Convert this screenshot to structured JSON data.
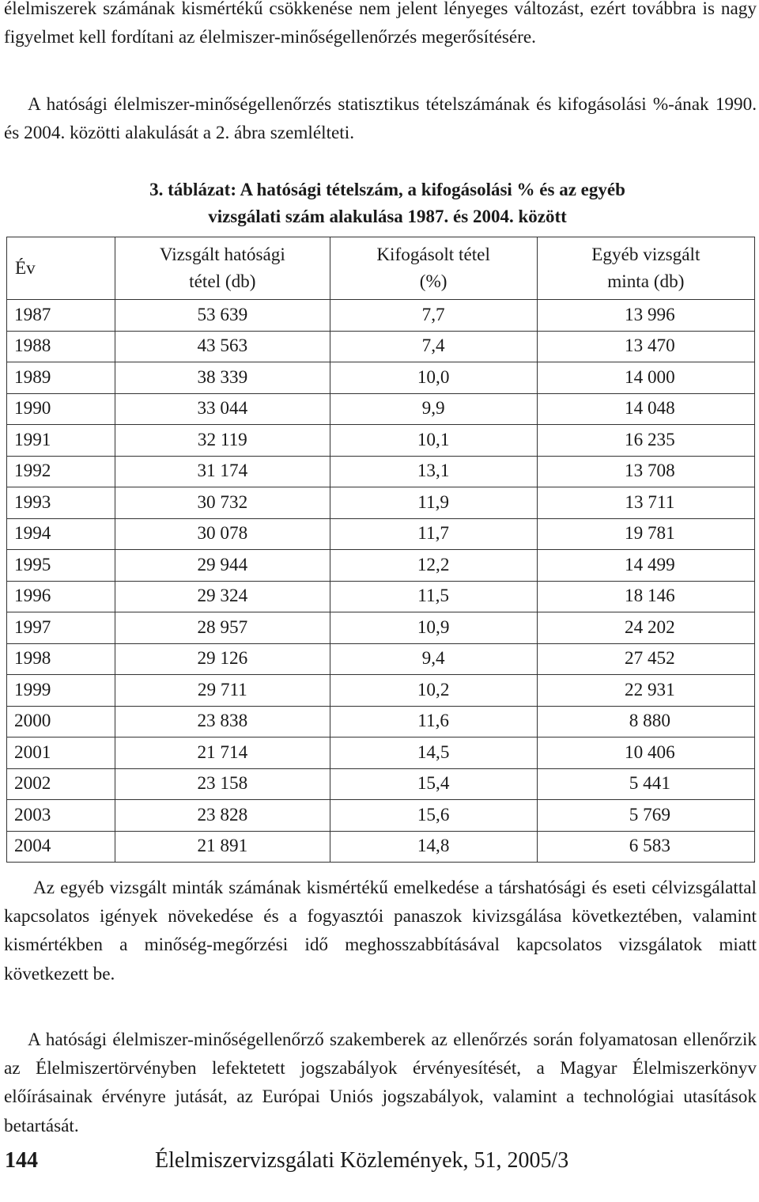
{
  "paragraphs_top": [
    "élelmiszerek számának kismértékű csökkenése nem jelent lényeges változást, ezért továbbra is nagy figyelmet kell fordítani az élelmiszer-minőségellenőrzés megerősítésére.",
    "A hatósági élelmiszer-minőségellenőrzés statisztikus tételszámának és kifogásolási %-ának 1990. és 2004. közötti alakulását a 2. ábra szemlélteti."
  ],
  "table": {
    "caption_line1": "3. táblázat: A hatósági tételszám, a kifogásolási % és az egyéb",
    "caption_line2": "vizsgálati szám alakulása 1987. és 2004. között",
    "headers": {
      "year": "Év",
      "col1_line1": "Vizsgált hatósági",
      "col1_line2": "tétel (db)",
      "col2_line1": "Kifogásolt tétel",
      "col2_line2": "(%)",
      "col3_line1": "Egyéb vizsgált",
      "col3_line2": "minta (db)"
    },
    "rows": [
      [
        "1987",
        "53 639",
        "7,7",
        "13 996"
      ],
      [
        "1988",
        "43 563",
        "7,4",
        "13 470"
      ],
      [
        "1989",
        "38 339",
        "10,0",
        "14 000"
      ],
      [
        "1990",
        "33 044",
        "9,9",
        "14 048"
      ],
      [
        "1991",
        "32 119",
        "10,1",
        "16 235"
      ],
      [
        "1992",
        "31 174",
        "13,1",
        "13 708"
      ],
      [
        "1993",
        "30 732",
        "11,9",
        "13 711"
      ],
      [
        "1994",
        "30 078",
        "11,7",
        "19 781"
      ],
      [
        "1995",
        "29 944",
        "12,2",
        "14 499"
      ],
      [
        "1996",
        "29 324",
        "11,5",
        "18 146"
      ],
      [
        "1997",
        "28 957",
        "10,9",
        "24 202"
      ],
      [
        "1998",
        "29 126",
        "9,4",
        "27 452"
      ],
      [
        "1999",
        "29 711",
        "10,2",
        "22 931"
      ],
      [
        "2000",
        "23 838",
        "11,6",
        "8 880"
      ],
      [
        "2001",
        "21 714",
        "14,5",
        "10 406"
      ],
      [
        "2002",
        "23 158",
        "15,4",
        "5 441"
      ],
      [
        "2003",
        "23 828",
        "15,6",
        "5 769"
      ],
      [
        "2004",
        "21 891",
        "14,8",
        "6 583"
      ]
    ]
  },
  "paragraphs_bottom": [
    "Az egyéb vizsgált minták számának kismértékű emelkedése a társhatósági és eseti célvizsgálattal kapcsolatos igények növekedése és a fogyasztói panaszok kivizsgálása következtében, valamint kismértékben a minőség-megőrzési idő meghosszabbításával kapcsolatos vizsgálatok miatt következett be.",
    "A hatósági élelmiszer-minőségellenőrző szakemberek az ellenőrzés során folyamatosan ellenőrzik az Élelmiszertörvényben lefektetett jogszabályok érvényesítését, a Magyar Élelmiszerkönyv előírásainak érvényre jutását, az Európai Uniós jogszabályok, valamint a technológiai utasítások betartását."
  ],
  "footer": {
    "page_number": "144",
    "journal": "Élelmiszervizsgálati Közlemények, 51, 2005/3"
  }
}
